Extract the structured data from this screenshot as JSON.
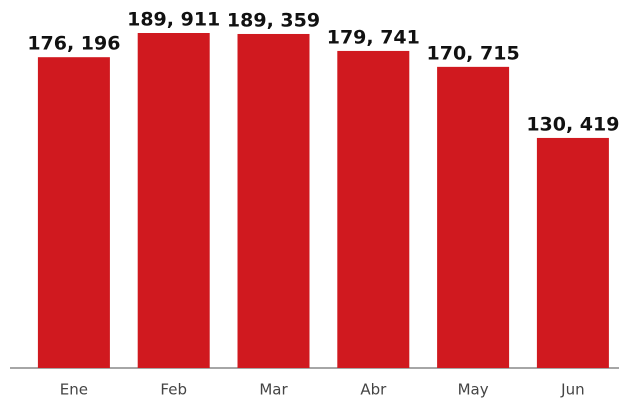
{
  "chart_data": {
    "type": "bar",
    "categories": [
      "Ene",
      "Feb",
      "Mar",
      "Abr",
      "May",
      "Jun"
    ],
    "values": [
      176196,
      189911,
      189359,
      179741,
      170715,
      130419
    ],
    "value_labels": [
      "176, 196",
      "189, 911",
      "189, 359",
      "179, 741",
      "170, 715",
      "130, 419"
    ],
    "color": "#d0191f"
  }
}
